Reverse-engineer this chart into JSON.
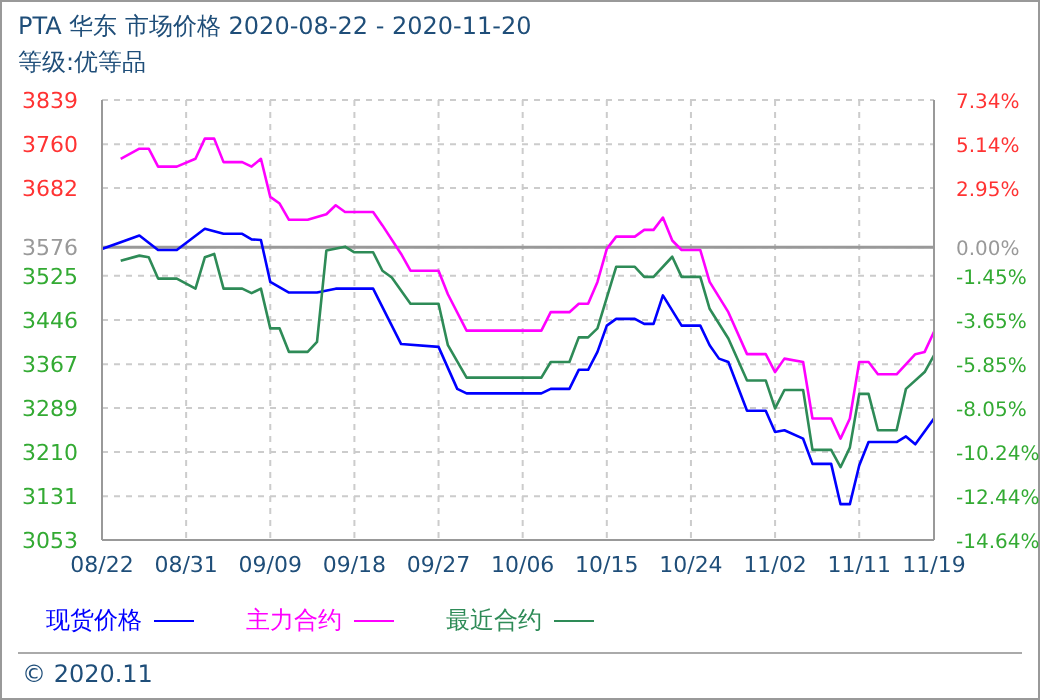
{
  "chart_data": {
    "type": "line",
    "title": "PTA 华东 市场价格 2020-08-22 - 2020-11-20",
    "subtitle": "等级:优等品",
    "annotations": [
      "© 2020.11"
    ],
    "xlim": [
      "--08-22",
      "--11-19"
    ],
    "xticks": [
      {
        "value": "--08-22",
        "label": "08/22"
      },
      {
        "value": "--08-31",
        "label": "08/31"
      },
      {
        "value": "--09-09",
        "label": "09/09"
      },
      {
        "value": "--09-18",
        "label": "09/18"
      },
      {
        "value": "--09-27",
        "label": "09/27"
      },
      {
        "value": "--10-06",
        "label": "10/06"
      },
      {
        "value": "--10-15",
        "label": "10/15"
      },
      {
        "value": "--10-24",
        "label": "10/24"
      },
      {
        "value": "--11-02",
        "label": "11/02"
      },
      {
        "value": "--11-11",
        "label": "11/11"
      },
      {
        "value": "--11-19",
        "label": "11/19"
      }
    ],
    "ylim": [
      3053,
      3839
    ],
    "yticks": [
      3053,
      3131,
      3210,
      3289,
      3367,
      3446,
      3525,
      3576,
      3682,
      3760,
      3839
    ],
    "y2lim": [
      -14.64,
      7.34
    ],
    "y2ticks": [
      {
        "value": -14.64,
        "label": "-14.64%"
      },
      {
        "value": -12.44,
        "label": "-12.44%"
      },
      {
        "value": -10.24,
        "label": "-10.24%"
      },
      {
        "value": -8.05,
        "label": "-8.05%"
      },
      {
        "value": -5.85,
        "label": "-5.85%"
      },
      {
        "value": -3.65,
        "label": "-3.65%"
      },
      {
        "value": -1.45,
        "label": "-1.45%"
      },
      {
        "value": 0,
        "label": "0.00%"
      },
      {
        "value": 2.95,
        "label": "2.95%"
      },
      {
        "value": 5.14,
        "label": "5.14%"
      },
      {
        "value": 7.34,
        "label": "7.34%"
      }
    ],
    "ref_lines": [
      {
        "axis": "y",
        "value": 3576,
        "color": "#999999"
      }
    ],
    "grid": true,
    "legend": "bottom",
    "marker": "none",
    "line_style": "solid",
    "series": [
      {
        "name": "现货价格",
        "color": "#0000ff",
        "x": [
          "--08-22",
          "--08-24",
          "--08-26",
          "--08-28",
          "--08-30",
          "--09-02",
          "--09-04",
          "--09-06",
          "--09-07",
          "--09-08",
          "--09-09",
          "--09-11",
          "--09-14",
          "--09-16",
          "--09-20",
          "--09-23",
          "--09-27",
          "--09-29",
          "--09-30",
          "--10-08",
          "--10-09",
          "--10-11",
          "--10-12",
          "--10-13",
          "--10-14",
          "--10-15",
          "--10-16",
          "--10-18",
          "--10-19",
          "--10-20",
          "--10-21",
          "--10-23",
          "--10-25",
          "--10-26",
          "--10-27",
          "--10-28",
          "--10-30",
          "--11-01",
          "--11-02",
          "--11-03",
          "--11-05",
          "--11-06",
          "--11-08",
          "--11-09",
          "--11-10",
          "--11-11",
          "--11-12",
          "--11-15",
          "--11-16",
          "--11-17",
          "--11-19"
        ],
        "values": [
          3573,
          3585,
          3597,
          3571,
          3571,
          3609,
          3600,
          3600,
          3590,
          3589,
          3514,
          3495,
          3495,
          3502,
          3502,
          3403,
          3398,
          3323,
          3315,
          3315,
          3323,
          3323,
          3357,
          3357,
          3389,
          3436,
          3448,
          3448,
          3439,
          3439,
          3490,
          3436,
          3436,
          3401,
          3377,
          3371,
          3284,
          3284,
          3246,
          3249,
          3234,
          3189,
          3189,
          3117,
          3117,
          3186,
          3228,
          3228,
          3238,
          3224,
          3270
        ]
      },
      {
        "name": "主力合约",
        "color": "#ff00ff",
        "x": [
          "--08-24",
          "--08-26",
          "--08-27",
          "--08-28",
          "--08-30",
          "--09-01",
          "--09-02",
          "--09-03",
          "--09-04",
          "--09-06",
          "--09-07",
          "--09-08",
          "--09-09",
          "--09-10",
          "--09-11",
          "--09-13",
          "--09-15",
          "--09-16",
          "--09-17",
          "--09-20",
          "--09-21",
          "--09-23",
          "--09-24",
          "--09-27",
          "--09-28",
          "--09-30",
          "--10-08",
          "--10-09",
          "--10-11",
          "--10-12",
          "--10-13",
          "--10-14",
          "--10-15",
          "--10-16",
          "--10-18",
          "--10-19",
          "--10-20",
          "--10-21",
          "--10-22",
          "--10-23",
          "--10-25",
          "--10-26",
          "--10-28",
          "--10-30",
          "--11-01",
          "--11-02",
          "--11-03",
          "--11-05",
          "--11-06",
          "--11-08",
          "--11-09",
          "--11-10",
          "--11-11",
          "--11-12",
          "--11-13",
          "--11-15",
          "--11-17",
          "--11-18",
          "--11-19"
        ],
        "values": [
          3734,
          3752,
          3752,
          3720,
          3720,
          3734,
          3770,
          3770,
          3728,
          3728,
          3720,
          3734,
          3666,
          3654,
          3625,
          3625,
          3635,
          3651,
          3639,
          3639,
          3615,
          3564,
          3534,
          3534,
          3492,
          3427,
          3427,
          3460,
          3460,
          3475,
          3475,
          3514,
          3573,
          3595,
          3595,
          3607,
          3607,
          3629,
          3588,
          3571,
          3571,
          3514,
          3460,
          3385,
          3385,
          3353,
          3377,
          3371,
          3270,
          3270,
          3234,
          3270,
          3371,
          3371,
          3349,
          3349,
          3385,
          3389,
          3425
        ]
      },
      {
        "name": "最近合约",
        "color": "#2e8b57",
        "x": [
          "--08-24",
          "--08-26",
          "--08-27",
          "--08-28",
          "--08-30",
          "--09-01",
          "--09-02",
          "--09-03",
          "--09-04",
          "--09-06",
          "--09-07",
          "--09-08",
          "--09-09",
          "--09-10",
          "--09-11",
          "--09-13",
          "--09-14",
          "--09-15",
          "--09-17",
          "--09-18",
          "--09-20",
          "--09-21",
          "--09-22",
          "--09-24",
          "--09-27",
          "--09-28",
          "--09-30",
          "--10-08",
          "--10-09",
          "--10-11",
          "--10-12",
          "--10-13",
          "--10-14",
          "--10-16",
          "--10-18",
          "--10-19",
          "--10-20",
          "--10-22",
          "--10-23",
          "--10-25",
          "--10-26",
          "--10-28",
          "--10-30",
          "--11-01",
          "--11-02",
          "--11-03",
          "--11-05",
          "--11-06",
          "--11-08",
          "--11-09",
          "--11-10",
          "--11-11",
          "--11-12",
          "--11-13",
          "--11-15",
          "--11-16",
          "--11-18",
          "--11-19"
        ],
        "values": [
          3552,
          3561,
          3558,
          3520,
          3520,
          3502,
          3558,
          3564,
          3502,
          3502,
          3494,
          3502,
          3431,
          3431,
          3389,
          3389,
          3407,
          3570,
          3577,
          3567,
          3567,
          3534,
          3522,
          3475,
          3475,
          3401,
          3343,
          3343,
          3371,
          3371,
          3415,
          3415,
          3431,
          3541,
          3541,
          3523,
          3523,
          3559,
          3523,
          3523,
          3466,
          3413,
          3338,
          3338,
          3288,
          3321,
          3321,
          3214,
          3214,
          3183,
          3218,
          3314,
          3314,
          3249,
          3249,
          3323,
          3353,
          3383
        ]
      }
    ]
  }
}
